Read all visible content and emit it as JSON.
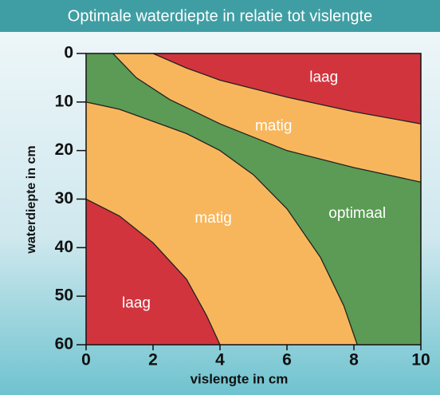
{
  "chart_data": {
    "type": "region",
    "title": "Optimale waterdiepte in relatie tot vislengte",
    "xlabel": "vislengte in cm",
    "ylabel": "waterdiepte in cm",
    "xlim": [
      0,
      10
    ],
    "ylim": [
      0,
      60
    ],
    "y_inverted": true,
    "xticks": [
      0,
      2,
      4,
      6,
      8,
      10
    ],
    "yticks": [
      0,
      10,
      20,
      30,
      40,
      50,
      60
    ],
    "background_color": "#5b9b55",
    "boundaries": [
      {
        "x": [
          0.8,
          1.5,
          2.5,
          4,
          6,
          8,
          10
        ],
        "values": [
          0,
          5,
          9.5,
          14.5,
          20,
          23.5,
          26.5
        ],
        "color": "#f8b65c",
        "fill_to": "top-right"
      },
      {
        "x": [
          2,
          3,
          4,
          6,
          8,
          10
        ],
        "values": [
          0,
          3,
          5.5,
          9,
          12,
          14.5
        ],
        "color": "#d2343e",
        "fill_to": "top-right"
      },
      {
        "x": [
          0,
          1,
          2,
          3,
          4,
          5,
          6,
          7,
          7.7,
          8.1
        ],
        "values": [
          10,
          11.5,
          14,
          16.5,
          20,
          25,
          32,
          42,
          52,
          60
        ],
        "color": "#f8b65c",
        "fill_to": "bottom-left"
      },
      {
        "x": [
          0,
          1,
          2,
          3,
          3.6,
          4
        ],
        "values": [
          30,
          33.5,
          39,
          46.5,
          54,
          60
        ],
        "color": "#d2343e",
        "fill_to": "bottom-left"
      }
    ],
    "annotations": [
      {
        "text": "laag",
        "x": 7.1,
        "y": 5
      },
      {
        "text": "matig",
        "x": 5.6,
        "y": 15
      },
      {
        "text": "optimaal",
        "x": 8.1,
        "y": 33
      },
      {
        "text": "matig",
        "x": 3.8,
        "y": 34
      },
      {
        "text": "laag",
        "x": 1.5,
        "y": 51.5
      }
    ]
  }
}
